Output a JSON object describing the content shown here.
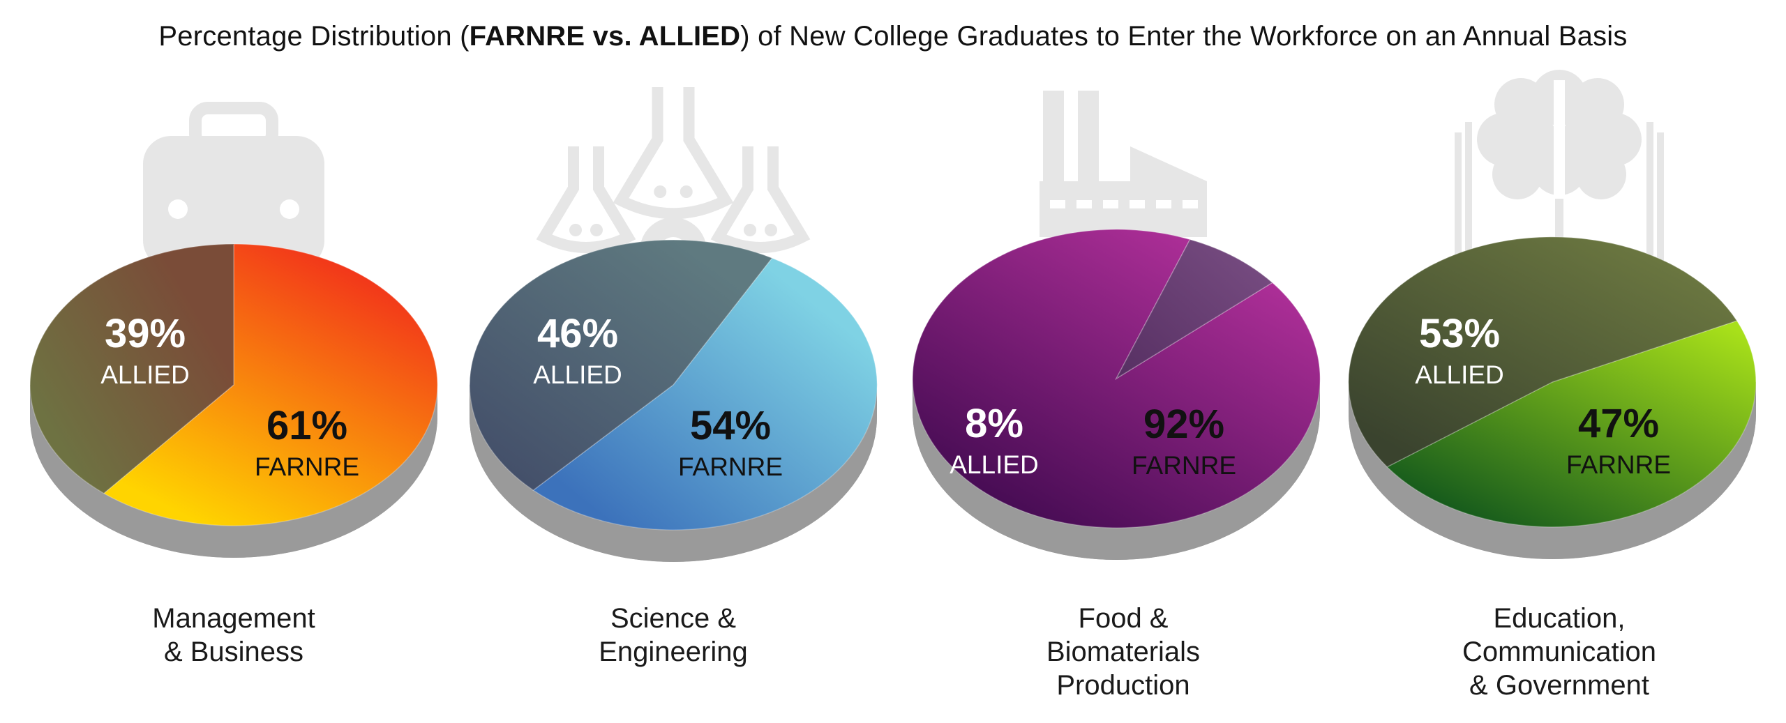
{
  "title": {
    "before": "Percentage Distribution (",
    "bold": "FARNRE vs. ALLIED",
    "after": ") of New College Graduates to Enter the Workforce on an Annual Basis"
  },
  "chart_data": [
    {
      "type": "pie",
      "category_label": [
        "Management",
        "& Business"
      ],
      "icon": "briefcase-icon",
      "series": [
        {
          "name": "FARNRE",
          "value": 61,
          "label": "61%",
          "color_from": "#ffd400",
          "color_to": "#f01e1e"
        },
        {
          "name": "ALLIED",
          "value": 39,
          "label": "39%",
          "color_from": "#6e7242",
          "color_to": "#7a4c38"
        }
      ]
    },
    {
      "type": "pie",
      "category_label": [
        "Science &",
        "Engineering"
      ],
      "icon": "lab-flasks-icon",
      "series": [
        {
          "name": "FARNRE",
          "value": 54,
          "label": "54%",
          "color_from": "#3c72bb",
          "color_to": "#7fd2e4"
        },
        {
          "name": "ALLIED",
          "value": 46,
          "label": "46%",
          "color_from": "#44506a",
          "color_to": "#5f7a80"
        }
      ]
    },
    {
      "type": "pie",
      "category_label": [
        "Food &",
        "Biomaterials",
        "Production"
      ],
      "icon": "factory-icon",
      "series": [
        {
          "name": "FARNRE",
          "value": 92,
          "label": "92%",
          "color_from": "#440b52",
          "color_to": "#b1309a"
        },
        {
          "name": "ALLIED",
          "value": 8,
          "label": "8%",
          "color_from": "#562f62",
          "color_to": "#7a4f84"
        }
      ]
    },
    {
      "type": "pie",
      "category_label": [
        "Education,",
        "Communication",
        "& Government"
      ],
      "icon": "brain-book-icon",
      "series": [
        {
          "name": "FARNRE",
          "value": 47,
          "label": "47%",
          "color_from": "#155a1c",
          "color_to": "#a8e01a"
        },
        {
          "name": "ALLIED",
          "value": 53,
          "label": "53%",
          "color_from": "#3a432e",
          "color_to": "#6a7640"
        }
      ]
    }
  ]
}
